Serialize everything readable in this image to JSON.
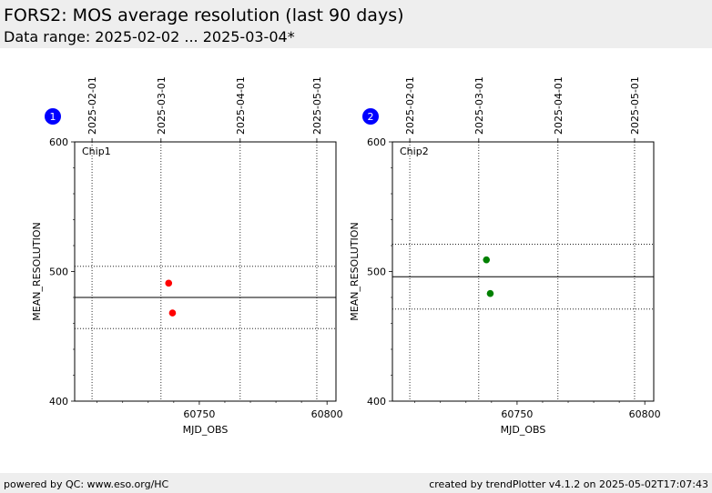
{
  "header": {
    "title": "FORS2: MOS average resolution (last 90 days)",
    "subtitle": "Data range: 2025-02-02 ... 2025-03-04*"
  },
  "footer": {
    "left": "powered by QC: www.eso.org/HC",
    "right": "created by trendPlotter v4.1.2 on 2025-05-02T17:07:43"
  },
  "colors": {
    "chip1_points": "#ff0000",
    "chip2_points": "#008000",
    "badge": "#0000ff"
  },
  "chart_data": [
    {
      "type": "scatter",
      "badge": "1",
      "panel_label": "Chip1",
      "xlabel": "MJD_OBS",
      "ylabel": "MEAN_RESOLUTION",
      "xlim": [
        60701.2,
        60803.5
      ],
      "ylim": [
        400,
        600
      ],
      "x_ticks": [
        60750,
        60800
      ],
      "x_tick_labels": [
        "60750",
        "60800"
      ],
      "y_ticks": [
        400,
        500,
        600
      ],
      "y_tick_labels": [
        "400",
        "500",
        "600"
      ],
      "date_ticks": [
        {
          "mjd": 60708,
          "label": "2025-02-01"
        },
        {
          "mjd": 60735,
          "label": "2025-03-01"
        },
        {
          "mjd": 60766,
          "label": "2025-04-01"
        },
        {
          "mjd": 60796,
          "label": "2025-05-01"
        }
      ],
      "points": [
        {
          "x": 60738.0,
          "y": 491
        },
        {
          "x": 60739.5,
          "y": 468
        }
      ],
      "mean": 480,
      "band": [
        456,
        504
      ],
      "point_color": "#ff0000"
    },
    {
      "type": "scatter",
      "badge": "2",
      "panel_label": "Chip2",
      "xlabel": "MJD_OBS",
      "ylabel": "MEAN_RESOLUTION",
      "xlim": [
        60701.2,
        60803.5
      ],
      "ylim": [
        400,
        600
      ],
      "x_ticks": [
        60750,
        60800
      ],
      "x_tick_labels": [
        "60750",
        "60800"
      ],
      "y_ticks": [
        400,
        500,
        600
      ],
      "y_tick_labels": [
        "400",
        "500",
        "600"
      ],
      "date_ticks": [
        {
          "mjd": 60708,
          "label": "2025-02-01"
        },
        {
          "mjd": 60735,
          "label": "2025-03-01"
        },
        {
          "mjd": 60766,
          "label": "2025-04-01"
        },
        {
          "mjd": 60796,
          "label": "2025-05-01"
        }
      ],
      "points": [
        {
          "x": 60738.0,
          "y": 509
        },
        {
          "x": 60739.5,
          "y": 483
        }
      ],
      "mean": 496,
      "band": [
        471,
        521
      ],
      "point_color": "#008000"
    }
  ]
}
